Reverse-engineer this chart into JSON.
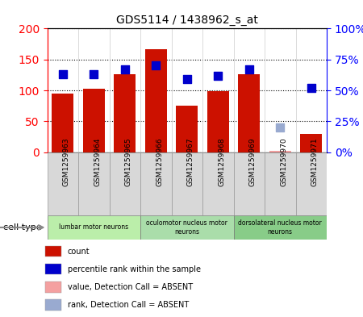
{
  "title": "GDS5114 / 1438962_s_at",
  "samples": [
    "GSM1259963",
    "GSM1259964",
    "GSM1259965",
    "GSM1259966",
    "GSM1259967",
    "GSM1259968",
    "GSM1259969",
    "GSM1259970",
    "GSM1259971"
  ],
  "counts": [
    95,
    103,
    126,
    167,
    75,
    99,
    126,
    2,
    30
  ],
  "counts_absent": [
    false,
    false,
    false,
    false,
    false,
    false,
    false,
    true,
    false
  ],
  "percentile": [
    63,
    63,
    67,
    70,
    59,
    62,
    67,
    20,
    52
  ],
  "percentile_absent": [
    false,
    false,
    false,
    false,
    false,
    false,
    false,
    true,
    false
  ],
  "bar_color": "#cc1100",
  "bar_absent_color": "#f4a0a0",
  "dot_color": "#0000cc",
  "dot_absent_color": "#99aad0",
  "left_ylim": [
    0,
    200
  ],
  "right_ylim": [
    0,
    100
  ],
  "left_yticks": [
    0,
    50,
    100,
    150,
    200
  ],
  "right_yticks": [
    0,
    25,
    50,
    75,
    100
  ],
  "right_yticklabels": [
    "0%",
    "25%",
    "50%",
    "75%",
    "100%"
  ],
  "groups": [
    {
      "label": "lumbar motor neurons",
      "start": 0,
      "end": 3,
      "color": "#bbeeaa"
    },
    {
      "label": "oculomotor nucleus motor\nneurons",
      "start": 3,
      "end": 6,
      "color": "#aaddaa"
    },
    {
      "label": "dorsolateral nucleus motor\nneurons",
      "start": 6,
      "end": 9,
      "color": "#88cc88"
    }
  ],
  "cell_type_label": "cell type",
  "legend_items": [
    {
      "label": "count",
      "color": "#cc1100"
    },
    {
      "label": "percentile rank within the sample",
      "color": "#0000cc"
    },
    {
      "label": "value, Detection Call = ABSENT",
      "color": "#f4a0a0"
    },
    {
      "label": "rank, Detection Call = ABSENT",
      "color": "#99aad0"
    }
  ],
  "bar_width": 0.7,
  "dot_size": 55,
  "fig_width": 4.5,
  "fig_height": 3.93,
  "dpi": 100
}
